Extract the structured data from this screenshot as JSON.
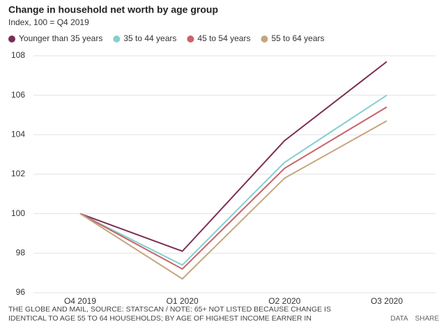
{
  "chart_data": {
    "type": "line",
    "title": "Change in household net worth by age group",
    "subtitle": "Index, 100 = Q4 2019",
    "categories": [
      "Q4 2019",
      "Q1 2020",
      "Q2 2020",
      "Q3 2020"
    ],
    "series": [
      {
        "name": "Younger than 35 years",
        "color": "#7b2d55",
        "values": [
          100,
          98.1,
          103.7,
          107.7
        ]
      },
      {
        "name": "35 to 44 years",
        "color": "#86cfcf",
        "values": [
          100,
          97.4,
          102.6,
          106.0
        ]
      },
      {
        "name": "45 to 54 years",
        "color": "#c9636b",
        "values": [
          100,
          97.2,
          102.3,
          105.4
        ]
      },
      {
        "name": "55 to 64 years",
        "color": "#c6a57c",
        "values": [
          100,
          96.7,
          101.8,
          104.7
        ]
      }
    ],
    "ylim": [
      96,
      108
    ],
    "yticks": [
      96,
      98,
      100,
      102,
      104,
      106,
      108
    ],
    "grid": true,
    "legend": "top"
  },
  "footer": {
    "source": "THE GLOBE AND MAIL, SOURCE: STATSCAN / NOTE: 65+ NOT LISTED BECAUSE CHANGE IS IDENTICAL TO AGE 55 TO 64 HOUSEHOLDS; BY AGE OF HIGHEST INCOME EARNER IN",
    "buttons": [
      "DATA",
      "SHARE"
    ]
  }
}
